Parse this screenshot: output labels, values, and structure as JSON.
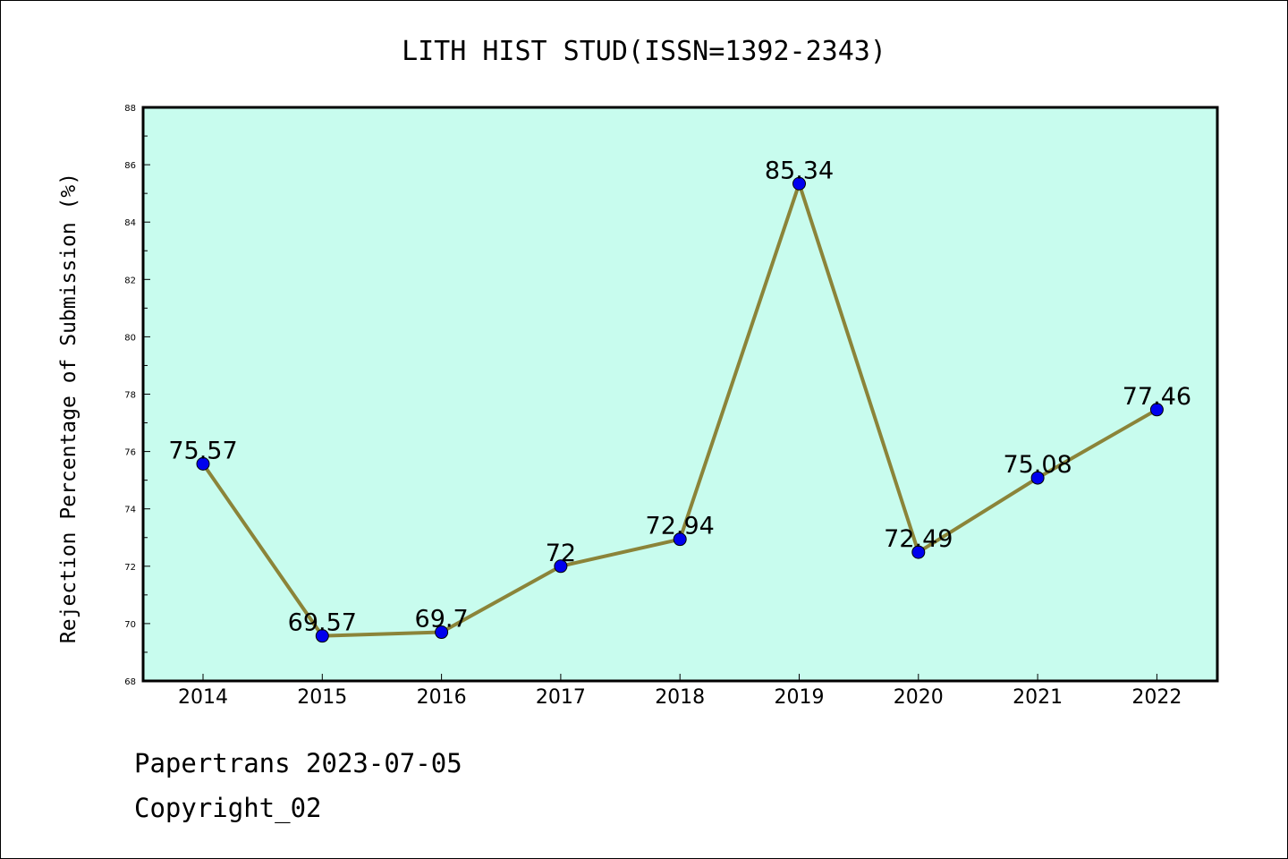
{
  "chart_data": {
    "type": "line",
    "title": "LITH HIST STUD(ISSN=1392-2343)",
    "xlabel": "",
    "ylabel": "Rejection Percentage of Submission (%)",
    "ylim": [
      68,
      88
    ],
    "y_ticks": [
      "68",
      "70",
      "72",
      "74",
      "76",
      "78",
      "80",
      "82",
      "84",
      "86",
      "88"
    ],
    "grid": false,
    "legend": "none",
    "colors": {
      "plot_background": "#c8fcee",
      "line": "#8b8439",
      "marker": "#0000ee"
    },
    "categories": [
      "2014",
      "2015",
      "2016",
      "2017",
      "2018",
      "2019",
      "2020",
      "2021",
      "2022"
    ],
    "series": [
      {
        "values": [
          75.57,
          69.57,
          69.7,
          72,
          72.94,
          85.34,
          72.49,
          75.08,
          77.46
        ],
        "labels": [
          "75.57",
          "69.57",
          "69.7",
          "72",
          "72.94",
          "85.34",
          "72.49",
          "75.08",
          "77.46"
        ]
      }
    ]
  },
  "footer": {
    "line1": "Papertrans 2023-07-05",
    "line2": "Copyright_02"
  }
}
